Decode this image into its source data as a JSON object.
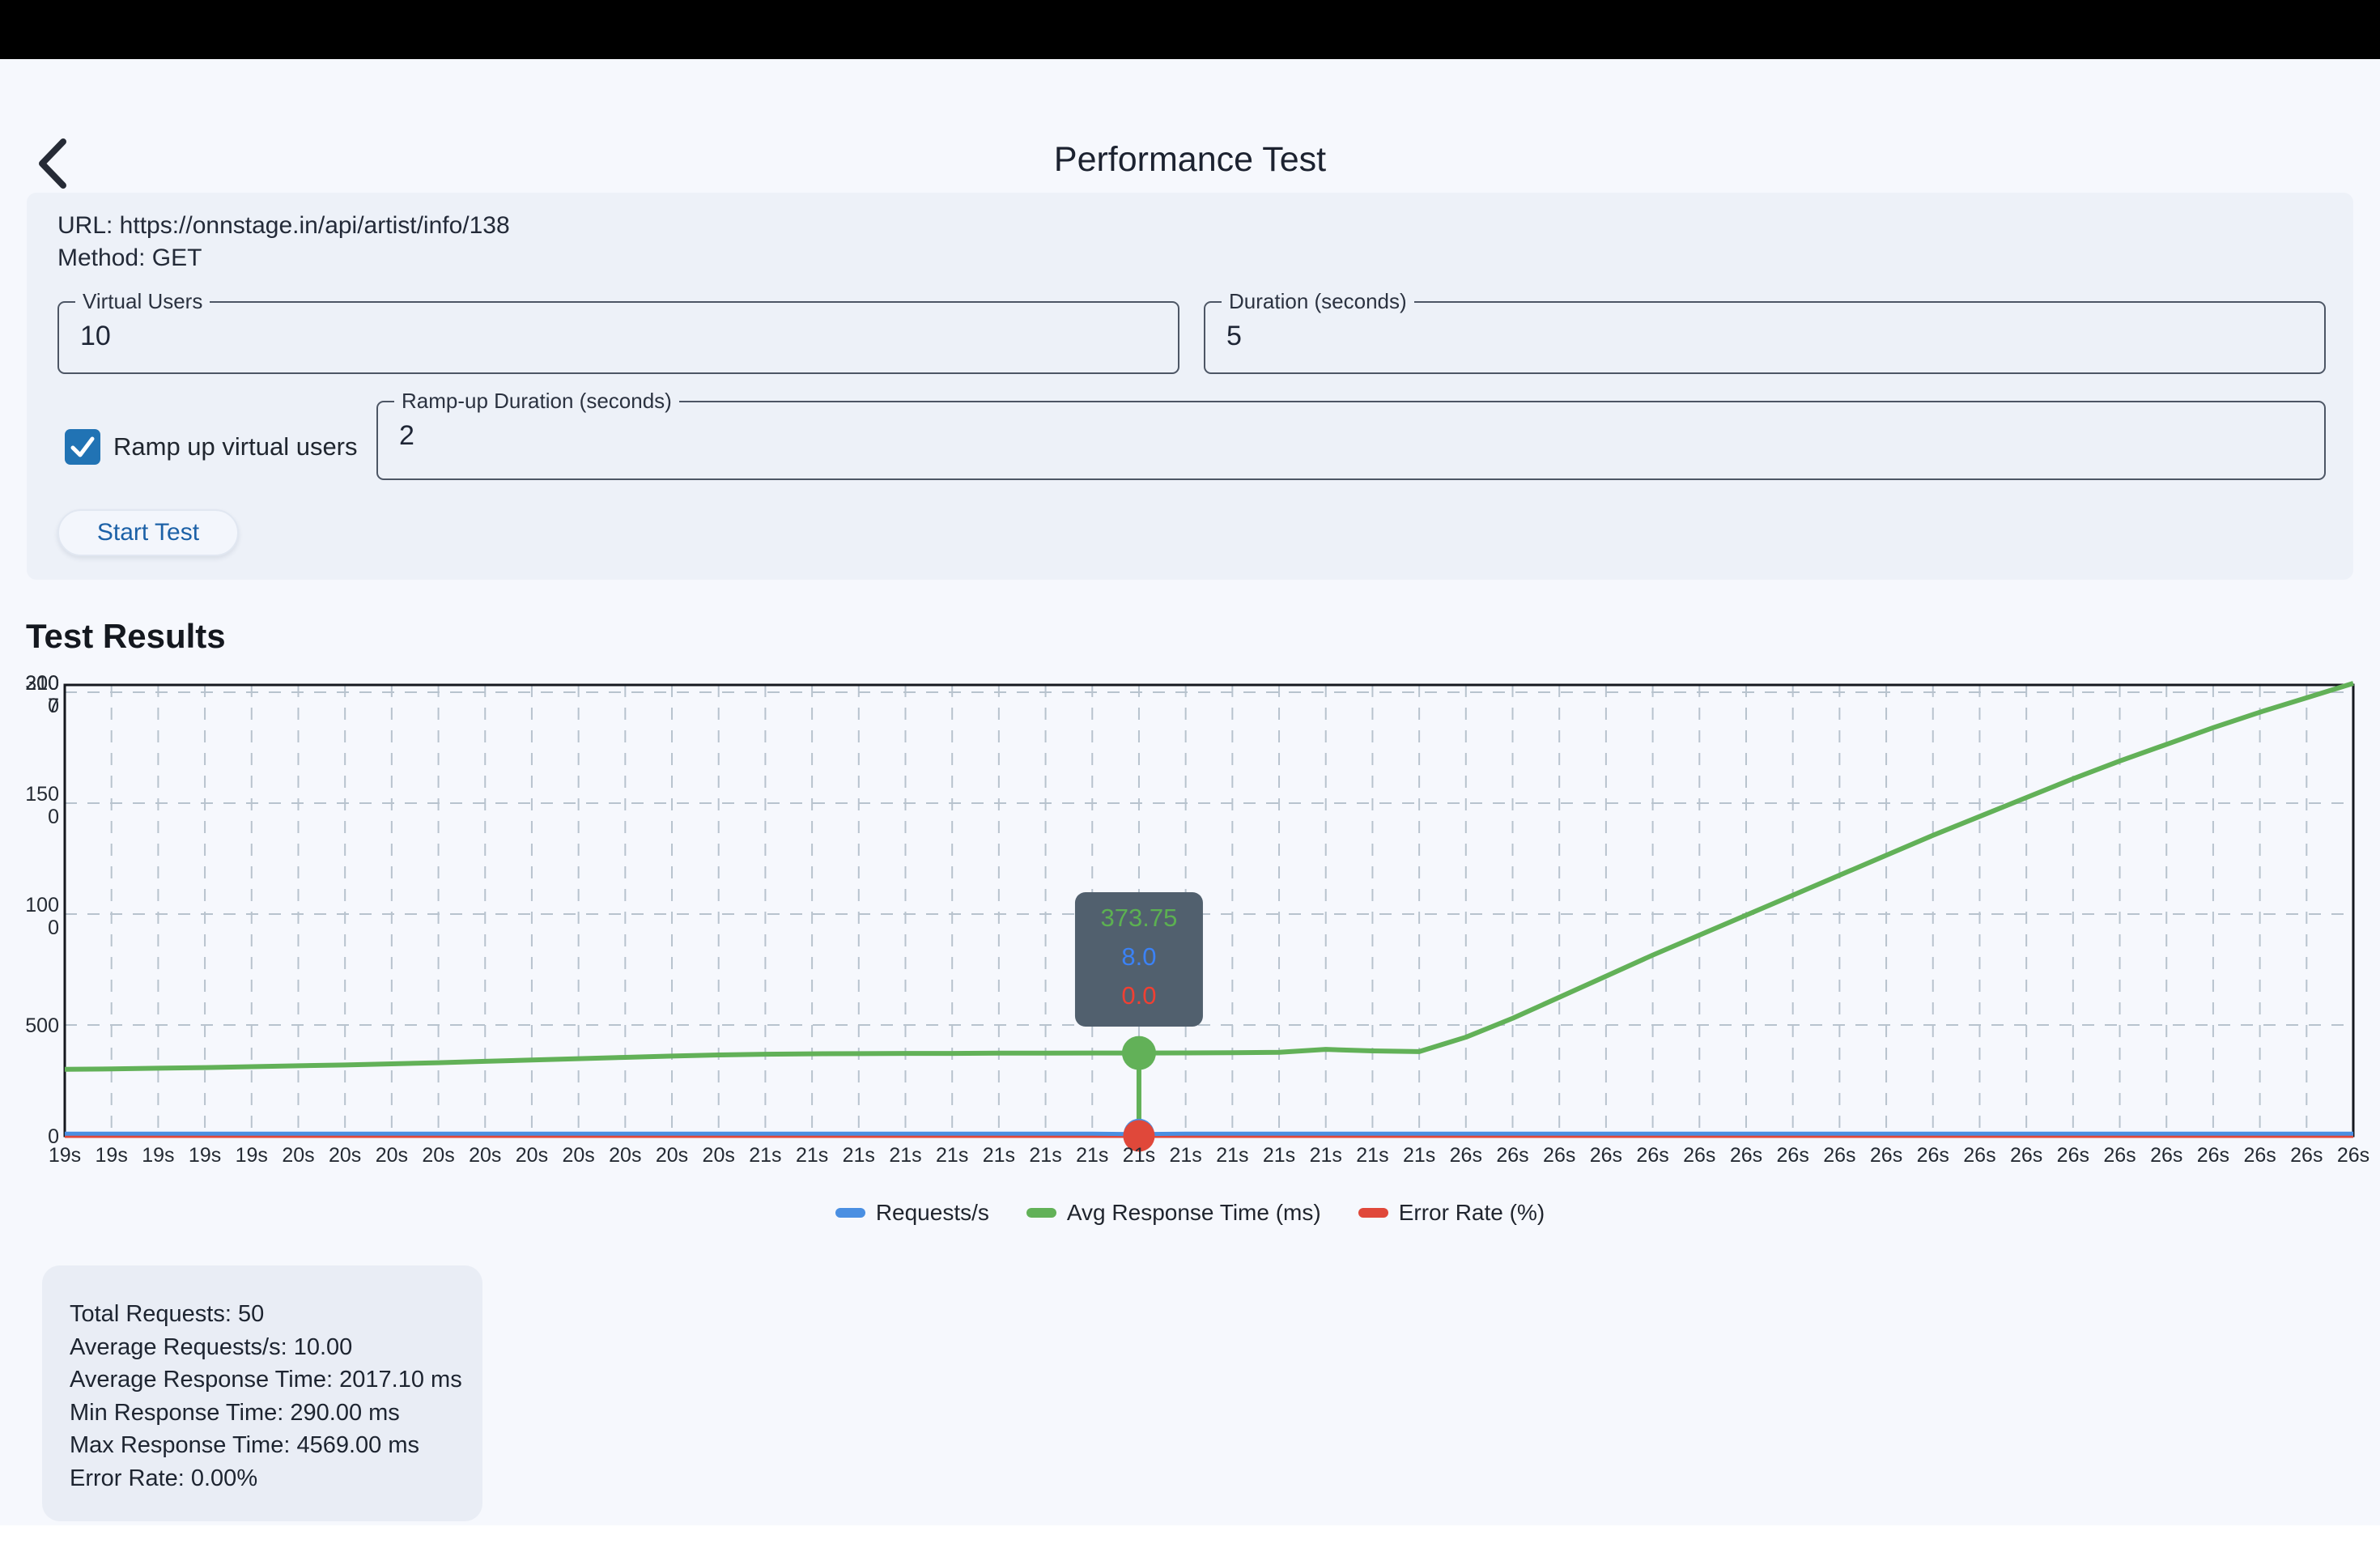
{
  "app": {
    "title": "Performance Test",
    "back_icon": "chevron-left-icon"
  },
  "request": {
    "url_line": "URL: https://onnstage.in/api/artist/info/138",
    "method_line": "Method: GET"
  },
  "form": {
    "virtual_users": {
      "label": "Virtual Users",
      "value": "10"
    },
    "duration": {
      "label": "Duration (seconds)",
      "value": "5"
    },
    "ramp_checkbox": {
      "label": "Ramp up virtual users",
      "checked": true
    },
    "ramp_duration": {
      "label": "Ramp-up Duration (seconds)",
      "value": "2"
    },
    "start_button_label": "Start Test"
  },
  "results": {
    "heading": "Test Results",
    "stats_lines": [
      "Total Requests: 50",
      "Average Requests/s: 10.00",
      "Average Response Time: 2017.10 ms",
      "Min Response Time: 290.00 ms",
      "Max Response Time: 4569.00 ms",
      "Error Rate: 0.00%"
    ]
  },
  "chart_data": {
    "type": "line",
    "x_labels": [
      "19s",
      "19s",
      "19s",
      "19s",
      "19s",
      "20s",
      "20s",
      "20s",
      "20s",
      "20s",
      "20s",
      "20s",
      "20s",
      "20s",
      "20s",
      "21s",
      "21s",
      "21s",
      "21s",
      "21s",
      "21s",
      "21s",
      "21s",
      "21s",
      "21s",
      "21s",
      "21s",
      "21s",
      "21s",
      "21s",
      "26s",
      "26s",
      "26s",
      "26s",
      "26s",
      "26s",
      "26s",
      "26s",
      "26s",
      "26s",
      "26s",
      "26s",
      "26s",
      "26s",
      "26s",
      "26s",
      "26s",
      "26s",
      "26s",
      "26s"
    ],
    "ylim": [
      0,
      2000
    ],
    "yticks": [
      0,
      500,
      1000,
      1500,
      2000
    ],
    "ytick_overlap_garble": {
      "line1_extra": [
        "300",
        "10"
      ],
      "line2_extra": [
        "7"
      ]
    },
    "grid": "dashed",
    "legend_position": "bottom",
    "series": [
      {
        "name": "Requests/s",
        "color": "#4a8fe2",
        "values": [
          10,
          10,
          10,
          10,
          10,
          10,
          10,
          10,
          10,
          10,
          10,
          10,
          10,
          10,
          10,
          10,
          10,
          10,
          10,
          10,
          10,
          10,
          10,
          8,
          10,
          10,
          10,
          10,
          10,
          10,
          10,
          10,
          10,
          10,
          10,
          10,
          10,
          10,
          10,
          10,
          10,
          10,
          10,
          10,
          10,
          10,
          10,
          10,
          10,
          10
        ]
      },
      {
        "name": "Avg Response Time (ms)",
        "color": "#62b158",
        "values": [
          300,
          302,
          305,
          308,
          312,
          316,
          320,
          325,
          330,
          336,
          342,
          348,
          354,
          360,
          365,
          368,
          370,
          371,
          372,
          372,
          373,
          373,
          373.5,
          373.75,
          374,
          375,
          377,
          390,
          383,
          380,
          445,
          530,
          625,
          720,
          815,
          905,
          995,
          1085,
          1175,
          1265,
          1355,
          1440,
          1525,
          1610,
          1690,
          1765,
          1840,
          1910,
          1975,
          2040
        ]
      },
      {
        "name": "Error Rate (%)",
        "color": "#e0483a",
        "values": [
          0,
          0,
          0,
          0,
          0,
          0,
          0,
          0,
          0,
          0,
          0,
          0,
          0,
          0,
          0,
          0,
          0,
          0,
          0,
          0,
          0,
          0,
          0,
          0,
          0,
          0,
          0,
          0,
          0,
          0,
          0,
          0,
          0,
          0,
          0,
          0,
          0,
          0,
          0,
          0,
          0,
          0,
          0,
          0,
          0,
          0,
          0,
          0,
          0,
          0
        ]
      }
    ],
    "tooltip": {
      "x_index": 23,
      "x_label": "21s",
      "bg": "#51606e",
      "entries": [
        {
          "text": "373.75",
          "color": "#5cb151"
        },
        {
          "text": "8.0",
          "color": "#3b82f6"
        },
        {
          "text": "0.0",
          "color": "#ef4033"
        }
      ]
    },
    "colors": {
      "grid": "#b8c3ce",
      "border": "#15181e",
      "axis_text": "#242a33"
    }
  }
}
